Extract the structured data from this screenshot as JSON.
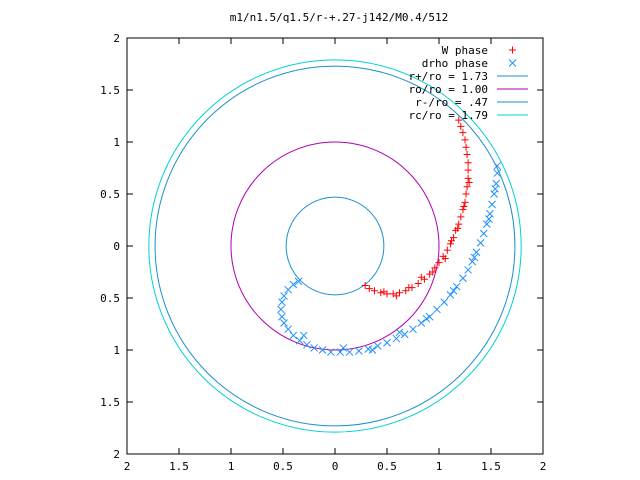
{
  "chart_data": {
    "type": "scatter",
    "title": "m1/n1.5/q1.5/r-+.27-j142/M0.4/512",
    "xlabel": "",
    "ylabel": "",
    "xlim": [
      -2,
      2
    ],
    "ylim": [
      -2,
      2
    ],
    "grid": false,
    "legend_position": "top-right",
    "x_tick_values": [
      -2,
      -1.5,
      -1,
      -0.5,
      0,
      0.5,
      1,
      1.5,
      2
    ],
    "x_tick_labels": [
      "2",
      "1.5",
      "1",
      "0.5",
      "0",
      "0.5",
      "1",
      "1.5",
      "2"
    ],
    "y_tick_values": [
      2,
      1.5,
      1,
      0.5,
      0,
      -0.5,
      -1,
      -1.5,
      -2
    ],
    "y_tick_labels": [
      "2",
      "1.5",
      "1",
      "0.5",
      "0",
      "0.5",
      "1",
      "1.5",
      "2"
    ],
    "series": [
      {
        "name": "W phase",
        "kind": "points",
        "marker": "+",
        "color": "#ff0000",
        "points": [
          [
            0.29,
            -0.38
          ],
          [
            0.33,
            -0.41
          ],
          [
            0.38,
            -0.43
          ],
          [
            0.44,
            -0.45
          ],
          [
            0.5,
            -0.46
          ],
          [
            0.56,
            -0.46
          ],
          [
            0.62,
            -0.45
          ],
          [
            0.68,
            -0.43
          ],
          [
            0.74,
            -0.4
          ],
          [
            0.8,
            -0.36
          ],
          [
            0.86,
            -0.32
          ],
          [
            0.91,
            -0.27
          ],
          [
            0.96,
            -0.21
          ],
          [
            1.0,
            -0.16
          ],
          [
            1.04,
            -0.1
          ],
          [
            1.08,
            -0.04
          ],
          [
            1.11,
            0.02
          ],
          [
            1.14,
            0.08
          ],
          [
            1.16,
            0.15
          ],
          [
            1.19,
            0.21
          ],
          [
            1.21,
            0.28
          ],
          [
            1.23,
            0.35
          ],
          [
            1.25,
            0.42
          ],
          [
            1.26,
            0.5
          ],
          [
            1.27,
            0.57
          ],
          [
            1.28,
            0.65
          ],
          [
            1.28,
            0.73
          ],
          [
            1.28,
            0.8
          ],
          [
            1.27,
            0.88
          ],
          [
            1.26,
            0.95
          ],
          [
            1.25,
            1.02
          ],
          [
            1.23,
            1.09
          ],
          [
            1.21,
            1.15
          ],
          [
            1.19,
            1.21
          ],
          [
            0.47,
            -0.44
          ],
          [
            0.59,
            -0.48
          ],
          [
            0.71,
            -0.4
          ],
          [
            0.83,
            -0.3
          ],
          [
            0.94,
            -0.25
          ],
          [
            1.06,
            -0.12
          ],
          [
            1.12,
            0.05
          ],
          [
            1.18,
            0.17
          ],
          [
            1.24,
            0.38
          ],
          [
            1.29,
            0.61
          ]
        ]
      },
      {
        "name": "drho phase",
        "kind": "points",
        "marker": "x",
        "color": "#1e90ff",
        "points": [
          [
            -0.35,
            -0.34
          ],
          [
            -0.4,
            -0.37
          ],
          [
            -0.45,
            -0.42
          ],
          [
            -0.49,
            -0.48
          ],
          [
            -0.51,
            -0.54
          ],
          [
            -0.52,
            -0.61
          ],
          [
            -0.51,
            -0.68
          ],
          [
            -0.49,
            -0.74
          ],
          [
            -0.45,
            -0.8
          ],
          [
            -0.4,
            -0.86
          ],
          [
            -0.34,
            -0.91
          ],
          [
            -0.27,
            -0.95
          ],
          [
            -0.2,
            -0.98
          ],
          [
            -0.12,
            -1.0
          ],
          [
            -0.04,
            -1.02
          ],
          [
            0.05,
            -1.02
          ],
          [
            0.14,
            -1.02
          ],
          [
            0.23,
            -1.01
          ],
          [
            0.32,
            -0.99
          ],
          [
            0.41,
            -0.96
          ],
          [
            0.5,
            -0.93
          ],
          [
            0.59,
            -0.89
          ],
          [
            0.67,
            -0.85
          ],
          [
            0.75,
            -0.8
          ],
          [
            0.83,
            -0.74
          ],
          [
            0.91,
            -0.68
          ],
          [
            0.98,
            -0.61
          ],
          [
            1.05,
            -0.54
          ],
          [
            1.11,
            -0.47
          ],
          [
            1.17,
            -0.39
          ],
          [
            1.23,
            -0.31
          ],
          [
            1.28,
            -0.23
          ],
          [
            1.32,
            -0.15
          ],
          [
            1.36,
            -0.06
          ],
          [
            1.4,
            0.03
          ],
          [
            1.43,
            0.12
          ],
          [
            1.46,
            0.21
          ],
          [
            1.49,
            0.31
          ],
          [
            1.51,
            0.4
          ],
          [
            1.53,
            0.5
          ],
          [
            1.55,
            0.6
          ],
          [
            1.56,
            0.7
          ],
          [
            1.56,
            0.77
          ],
          [
            -0.3,
            -0.86
          ],
          [
            0.08,
            -0.98
          ],
          [
            0.36,
            -1.0
          ],
          [
            0.62,
            -0.83
          ],
          [
            0.88,
            -0.7
          ],
          [
            1.14,
            -0.43
          ],
          [
            1.34,
            -0.11
          ],
          [
            1.48,
            0.26
          ],
          [
            1.54,
            0.55
          ]
        ]
      },
      {
        "name": "r+/ro = 1.73",
        "kind": "circle",
        "radius": 1.73,
        "color": "#1a8fcf"
      },
      {
        "name": "ro/ro = 1.00",
        "kind": "circle",
        "radius": 1.0,
        "color": "#b000b0"
      },
      {
        "name": "r-/ro = .47",
        "kind": "circle",
        "radius": 0.47,
        "color": "#1a8fcf"
      },
      {
        "name": "rc/ro = 1.79",
        "kind": "circle",
        "radius": 1.79,
        "color": "#00d0d0"
      }
    ]
  }
}
